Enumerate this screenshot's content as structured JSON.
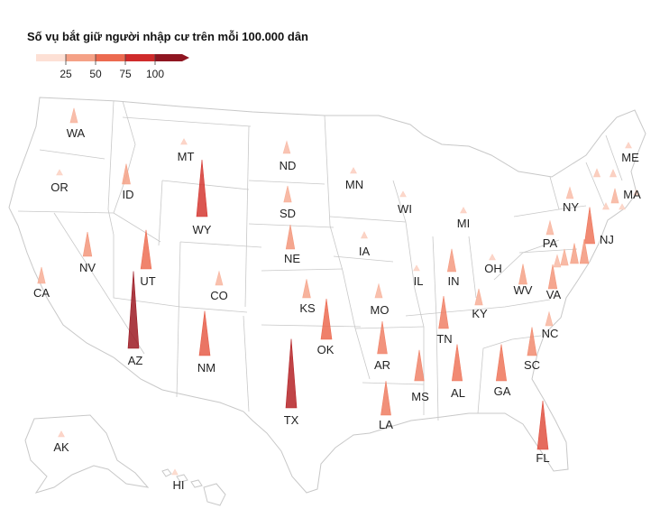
{
  "title": "Số vụ bắt giữ người nhập cư trên mỗi 100.000 dân",
  "legend": {
    "ticks": [
      "25",
      "50",
      "75",
      "100"
    ],
    "colors": [
      "#fde0d5",
      "#f5a186",
      "#ec6a50",
      "#cf2b2b",
      "#8f1621"
    ]
  },
  "chart_data": {
    "type": "map-spikes",
    "measure": "Số vụ bắt giữ người nhập cư trên mỗi 100.000 dân",
    "scale_max": 100,
    "states": [
      {
        "code": "WA",
        "value": 18
      },
      {
        "code": "OR",
        "value": 6
      },
      {
        "code": "CA",
        "value": 20
      },
      {
        "code": "ID",
        "value": 25
      },
      {
        "code": "MT",
        "value": 7
      },
      {
        "code": "WY",
        "value": 70
      },
      {
        "code": "NV",
        "value": 30
      },
      {
        "code": "UT",
        "value": 48
      },
      {
        "code": "AZ",
        "value": 95
      },
      {
        "code": "CO",
        "value": 17
      },
      {
        "code": "NM",
        "value": 55
      },
      {
        "code": "ND",
        "value": 15
      },
      {
        "code": "SD",
        "value": 20
      },
      {
        "code": "NE",
        "value": 30
      },
      {
        "code": "KS",
        "value": 23
      },
      {
        "code": "OK",
        "value": 50
      },
      {
        "code": "TX",
        "value": 85
      },
      {
        "code": "MN",
        "value": 7
      },
      {
        "code": "IA",
        "value": 8
      },
      {
        "code": "MO",
        "value": 17
      },
      {
        "code": "AR",
        "value": 40
      },
      {
        "code": "LA",
        "value": 42
      },
      {
        "code": "WI",
        "value": 6
      },
      {
        "code": "IL",
        "value": 6
      },
      {
        "code": "MI",
        "value": 7
      },
      {
        "code": "IN",
        "value": 28
      },
      {
        "code": "OH",
        "value": 7
      },
      {
        "code": "KY",
        "value": 20
      },
      {
        "code": "TN",
        "value": 40
      },
      {
        "code": "MS",
        "value": 38
      },
      {
        "code": "AL",
        "value": 45
      },
      {
        "code": "GA",
        "value": 45
      },
      {
        "code": "FL",
        "value": 60
      },
      {
        "code": "SC",
        "value": 35
      },
      {
        "code": "NC",
        "value": 17
      },
      {
        "code": "VA",
        "value": 30
      },
      {
        "code": "WV",
        "value": 25
      },
      {
        "code": "PA",
        "value": 17
      },
      {
        "code": "NY",
        "value": 14
      },
      {
        "code": "NJ",
        "value": 45
      },
      {
        "code": "MA",
        "value": 18
      },
      {
        "code": "ME",
        "value": 7
      },
      {
        "code": "AK",
        "value": 7
      },
      {
        "code": "HI",
        "value": 4
      },
      {
        "code": "",
        "value": 10
      },
      {
        "code": "",
        "value": 9
      },
      {
        "code": "",
        "value": 8
      },
      {
        "code": "",
        "value": 6
      },
      {
        "code": "",
        "value": 25
      },
      {
        "code": "",
        "value": 30
      },
      {
        "code": "",
        "value": 20
      },
      {
        "code": "",
        "value": 15
      },
      {
        "code": "",
        "value": 5
      }
    ]
  }
}
